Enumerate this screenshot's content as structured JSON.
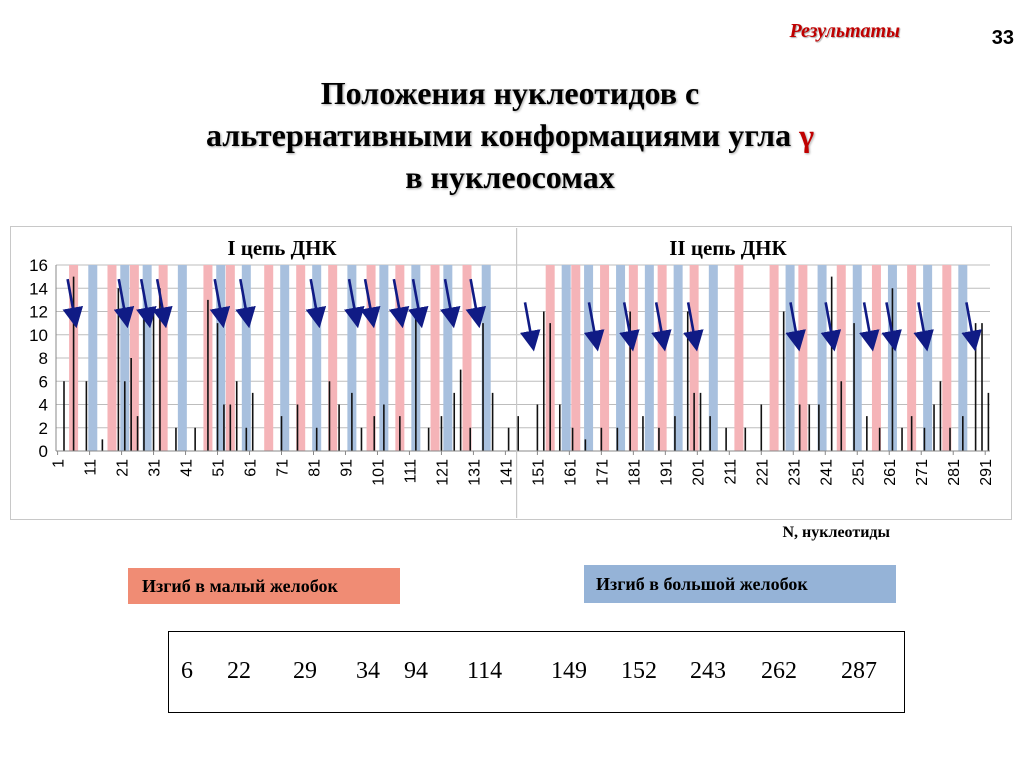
{
  "header": {
    "section": "Результаты",
    "page_number": "33"
  },
  "title": {
    "line1": "Положения нуклеотидов с",
    "line2_prefix": "альтернативными конформациями угла",
    "gamma_symbol": "γ",
    "line3": "в нуклеосомах"
  },
  "chart_data": {
    "type": "bar",
    "panels": [
      {
        "label": "I  цепь ДНК",
        "x_range": [
          1,
          146
        ]
      },
      {
        "label": "II цепь ДНК",
        "x_range": [
          147,
          292
        ]
      }
    ],
    "xlabel": "N, нуклеотиды",
    "ylim": [
      0,
      16
    ],
    "y_ticks": [
      0,
      2,
      4,
      6,
      8,
      10,
      12,
      14,
      16
    ],
    "x_ticks": [
      1,
      11,
      21,
      31,
      41,
      51,
      61,
      71,
      81,
      91,
      101,
      111,
      121,
      131,
      141,
      151,
      161,
      171,
      181,
      191,
      201,
      211,
      221,
      231,
      241,
      251,
      261,
      271,
      281,
      291
    ],
    "grid": true,
    "minor_groove_positions": [
      6,
      18,
      25,
      34,
      48,
      55,
      67,
      77,
      87,
      99,
      108,
      119,
      129,
      155,
      163,
      172,
      181,
      190,
      200,
      214,
      225,
      234,
      246,
      257,
      268,
      279
    ],
    "major_groove_positions": [
      12,
      22,
      29,
      40,
      52,
      60,
      72,
      82,
      93,
      103,
      113,
      123,
      135,
      160,
      167,
      177,
      186,
      195,
      206,
      230,
      240,
      251,
      262,
      273,
      284
    ],
    "arrow_positions": [
      6,
      22,
      29,
      34,
      52,
      60,
      82,
      94,
      99,
      108,
      114,
      124,
      132,
      149,
      169,
      180,
      190,
      200,
      232,
      243,
      255,
      262,
      272,
      287
    ],
    "series": [
      {
        "values": [
          {
            "x": 3,
            "y": 6
          },
          {
            "x": 6,
            "y": 15
          },
          {
            "x": 10,
            "y": 6
          },
          {
            "x": 15,
            "y": 1
          },
          {
            "x": 20,
            "y": 14
          },
          {
            "x": 22,
            "y": 6
          },
          {
            "x": 24,
            "y": 8
          },
          {
            "x": 26,
            "y": 3
          },
          {
            "x": 28,
            "y": 12
          },
          {
            "x": 31,
            "y": 12
          },
          {
            "x": 33,
            "y": 14
          },
          {
            "x": 38,
            "y": 2
          },
          {
            "x": 44,
            "y": 2
          },
          {
            "x": 48,
            "y": 13
          },
          {
            "x": 51,
            "y": 11
          },
          {
            "x": 53,
            "y": 4
          },
          {
            "x": 55,
            "y": 4
          },
          {
            "x": 57,
            "y": 6
          },
          {
            "x": 60,
            "y": 2
          },
          {
            "x": 62,
            "y": 5
          },
          {
            "x": 71,
            "y": 3
          },
          {
            "x": 76,
            "y": 4
          },
          {
            "x": 82,
            "y": 2
          },
          {
            "x": 86,
            "y": 6
          },
          {
            "x": 89,
            "y": 4
          },
          {
            "x": 93,
            "y": 5
          },
          {
            "x": 96,
            "y": 2
          },
          {
            "x": 100,
            "y": 3
          },
          {
            "x": 103,
            "y": 4
          },
          {
            "x": 108,
            "y": 3
          },
          {
            "x": 113,
            "y": 12
          },
          {
            "x": 117,
            "y": 2
          },
          {
            "x": 121,
            "y": 3
          },
          {
            "x": 125,
            "y": 5
          },
          {
            "x": 127,
            "y": 7
          },
          {
            "x": 130,
            "y": 2
          },
          {
            "x": 134,
            "y": 11
          },
          {
            "x": 137,
            "y": 5
          },
          {
            "x": 142,
            "y": 2
          },
          {
            "x": 145,
            "y": 3
          },
          {
            "x": 151,
            "y": 4
          },
          {
            "x": 153,
            "y": 12
          },
          {
            "x": 155,
            "y": 11
          },
          {
            "x": 158,
            "y": 4
          },
          {
            "x": 162,
            "y": 2
          },
          {
            "x": 166,
            "y": 1
          },
          {
            "x": 171,
            "y": 2
          },
          {
            "x": 176,
            "y": 2
          },
          {
            "x": 180,
            "y": 12
          },
          {
            "x": 184,
            "y": 3
          },
          {
            "x": 189,
            "y": 2
          },
          {
            "x": 194,
            "y": 3
          },
          {
            "x": 198,
            "y": 12
          },
          {
            "x": 200,
            "y": 5
          },
          {
            "x": 202,
            "y": 5
          },
          {
            "x": 205,
            "y": 3
          },
          {
            "x": 210,
            "y": 2
          },
          {
            "x": 216,
            "y": 2
          },
          {
            "x": 221,
            "y": 4
          },
          {
            "x": 228,
            "y": 12
          },
          {
            "x": 233,
            "y": 4
          },
          {
            "x": 236,
            "y": 4
          },
          {
            "x": 239,
            "y": 4
          },
          {
            "x": 243,
            "y": 15
          },
          {
            "x": 246,
            "y": 6
          },
          {
            "x": 250,
            "y": 11
          },
          {
            "x": 254,
            "y": 3
          },
          {
            "x": 258,
            "y": 2
          },
          {
            "x": 262,
            "y": 14
          },
          {
            "x": 265,
            "y": 2
          },
          {
            "x": 268,
            "y": 3
          },
          {
            "x": 272,
            "y": 2
          },
          {
            "x": 275,
            "y": 4
          },
          {
            "x": 277,
            "y": 6
          },
          {
            "x": 280,
            "y": 2
          },
          {
            "x": 284,
            "y": 3
          },
          {
            "x": 288,
            "y": 11
          },
          {
            "x": 290,
            "y": 11
          },
          {
            "x": 292,
            "y": 5
          }
        ]
      }
    ]
  },
  "legend": {
    "minor_groove": "Изгиб в малый желобок",
    "major_groove": "Изгиб в большой желобок",
    "minor_color": "#f08c74",
    "major_color": "#95b3d7",
    "stripe_pink": "#f5b4b8",
    "stripe_blue": "#a8c0de",
    "arrow_color": "#101b85"
  },
  "positions": [
    "6",
    "22",
    "29",
    "34",
    "94",
    "114",
    "149",
    "152",
    "243",
    "262",
    "287"
  ]
}
